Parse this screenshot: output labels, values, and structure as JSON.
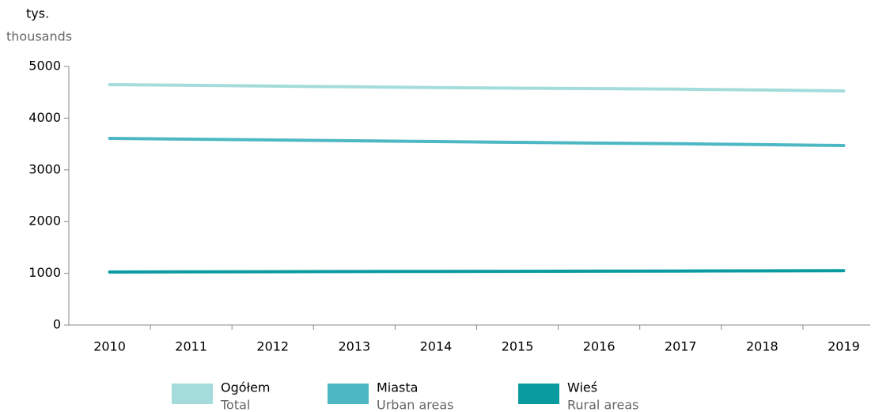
{
  "chart_data": {
    "type": "line",
    "y_label": "tys.",
    "y_label_en": "thousands",
    "categories": [
      "2010",
      "2011",
      "2012",
      "2013",
      "2014",
      "2015",
      "2016",
      "2017",
      "2018",
      "2019"
    ],
    "series": [
      {
        "name": "Ogółem",
        "name_en": "Total",
        "color": "#a4dcdc",
        "values": [
          4648,
          4635,
          4620,
          4605,
          4590,
          4580,
          4570,
          4560,
          4545,
          4526
        ]
      },
      {
        "name": "Miasta",
        "name_en": "Urban areas",
        "color": "#4db8c4",
        "values": [
          3609,
          3594,
          3578,
          3562,
          3547,
          3532,
          3517,
          3505,
          3488,
          3471
        ]
      },
      {
        "name": "Wieś",
        "name_en": "Rural areas",
        "color": "#0a9ba0",
        "values": [
          1025,
          1028,
          1030,
          1033,
          1036,
          1038,
          1041,
          1044,
          1047,
          1050
        ]
      }
    ],
    "ylim": [
      0,
      5000
    ],
    "yticks": [
      0,
      1000,
      2000,
      3000,
      4000,
      5000
    ]
  }
}
